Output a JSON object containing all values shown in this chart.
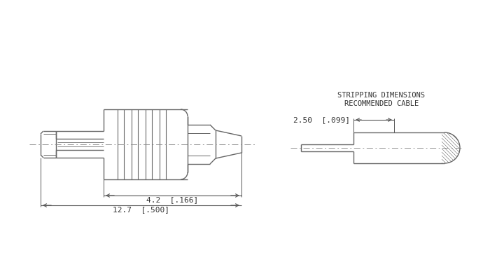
{
  "bg_color": "#ffffff",
  "line_color": "#666666",
  "centerline_color": "#888888",
  "dim_color": "#555555",
  "text_color": "#333333",
  "dim_label_42": "4.2  [.166]",
  "dim_label_127": "12.7  [.500]",
  "dim_label_250": "2.50  [.099]",
  "rec_label_line1": "RECOMMENDED CABLE",
  "rec_label_line2": "STRIPPING DIMENSIONS",
  "font_size_dim": 8.0,
  "font_size_label": 7.5
}
